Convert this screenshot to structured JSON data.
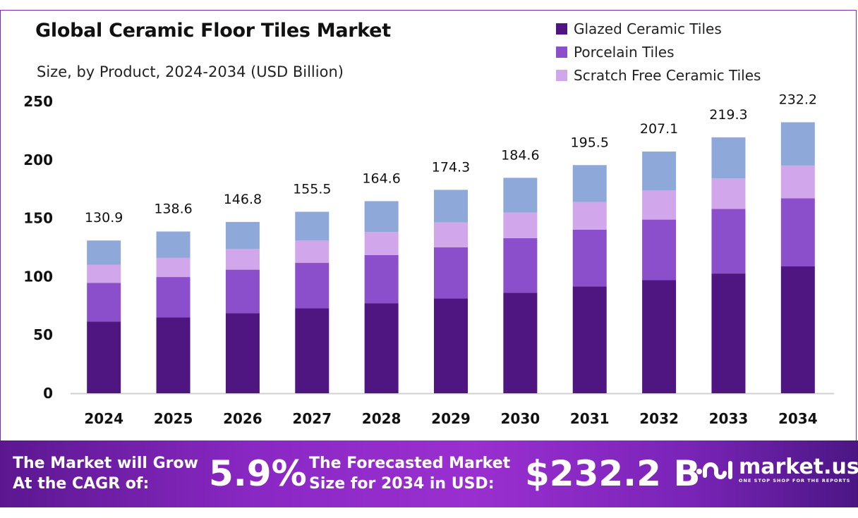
{
  "chart_data": {
    "type": "bar",
    "stacked": true,
    "title": "Global Ceramic Floor Tiles Market",
    "subtitle": "Size, by Product, 2024-2034 (USD Billion)",
    "xlabel": "",
    "ylabel": "",
    "ylim": [
      0,
      250
    ],
    "yticks": [
      0,
      50,
      100,
      150,
      200,
      250
    ],
    "grid": false,
    "legend_position": "top-right",
    "categories": [
      "2024",
      "2025",
      "2026",
      "2027",
      "2028",
      "2029",
      "2030",
      "2031",
      "2032",
      "2033",
      "2034"
    ],
    "totals": [
      "130.9",
      "138.6",
      "146.8",
      "155.5",
      "164.6",
      "174.3",
      "184.6",
      "195.5",
      "207.1",
      "219.3",
      "232.2"
    ],
    "series": [
      {
        "name": "Glazed Ceramic Tiles",
        "color": "#4f1682",
        "values": [
          61.5,
          64.9,
          68.7,
          72.8,
          77.0,
          81.3,
          86.1,
          91.6,
          97.1,
          102.6,
          108.7
        ]
      },
      {
        "name": "Porcelain Tiles",
        "color": "#8b4fcb",
        "values": [
          33.0,
          34.7,
          37.2,
          38.9,
          41.4,
          43.8,
          46.8,
          48.6,
          51.7,
          55.3,
          58.4
        ]
      },
      {
        "name": "Scratch Free Ceramic Tiles",
        "color": "#d2a6ea",
        "values": [
          15.7,
          16.4,
          17.7,
          19.1,
          19.7,
          21.3,
          21.9,
          23.7,
          24.9,
          26.1,
          28.0
        ]
      },
      {
        "color": "#8fa8da",
        "values": [
          20.7,
          22.6,
          23.2,
          24.7,
          26.5,
          27.9,
          29.8,
          31.6,
          33.4,
          35.3,
          37.1
        ]
      }
    ]
  },
  "banner": {
    "cagr_label_line1": "The Market will Grow",
    "cagr_label_line2": "At the CAGR of:",
    "cagr_value": "5.9%",
    "forecast_label_line1": "The Forecasted Market",
    "forecast_label_line2": "Size for 2034 in USD:",
    "forecast_value": "$232.2 B",
    "logo_name": "market.us",
    "logo_tagline": "ONE STOP SHOP FOR THE REPORTS"
  }
}
